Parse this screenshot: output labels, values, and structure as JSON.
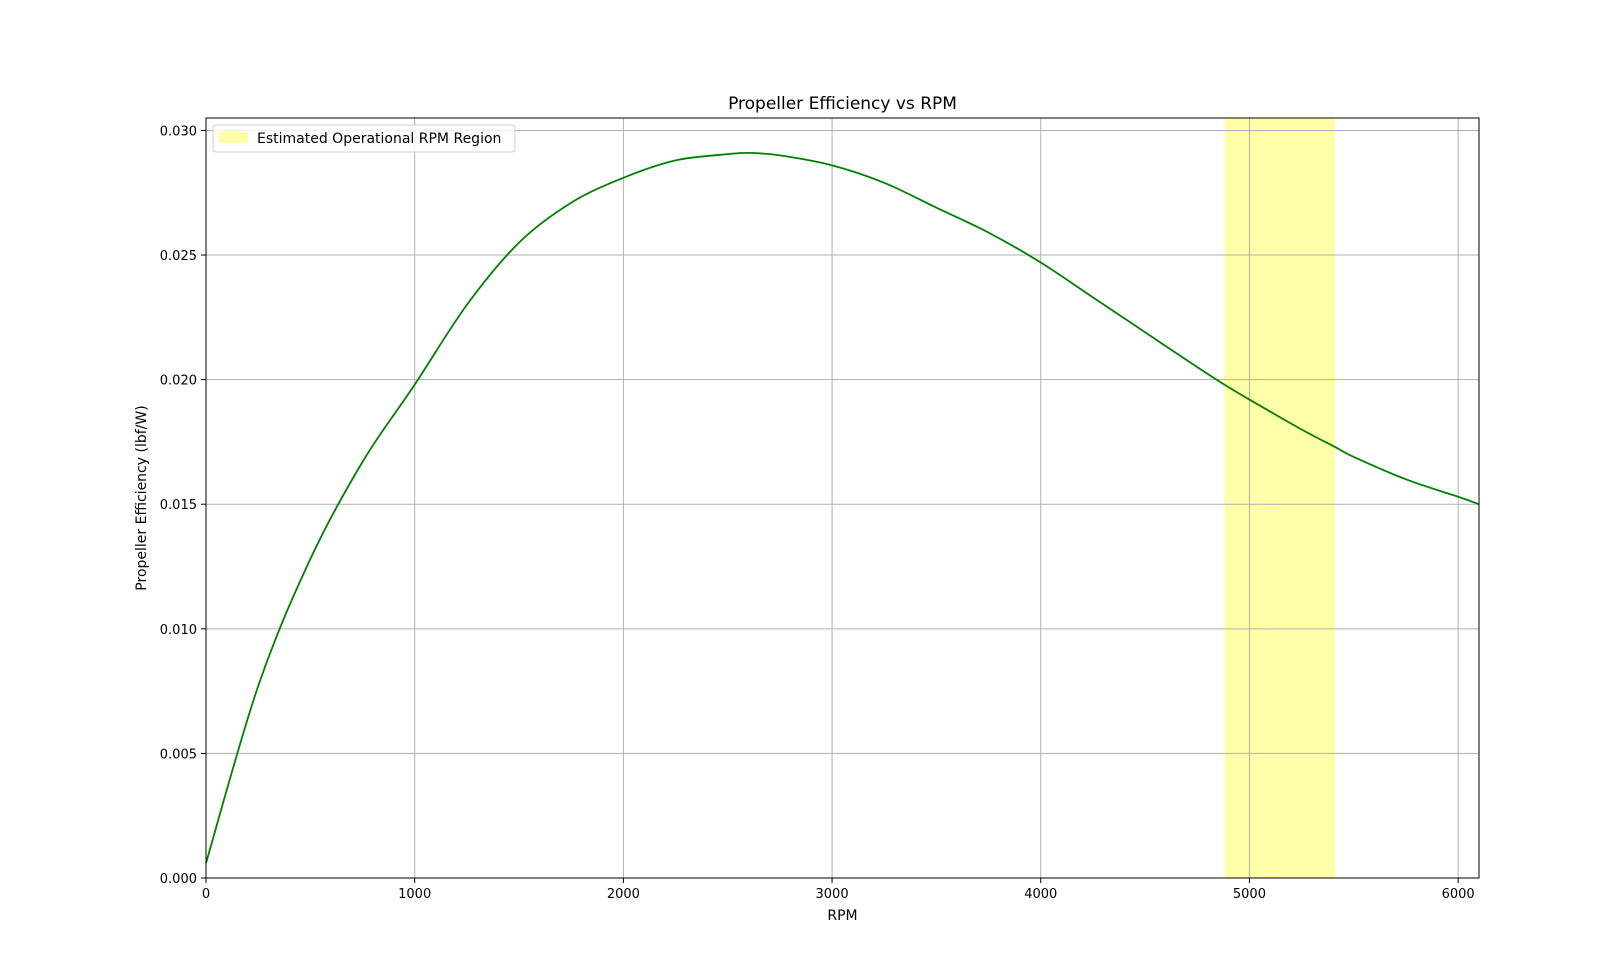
{
  "chart_data": {
    "type": "line",
    "title": "Propeller Efficiency vs RPM",
    "xlabel": "RPM",
    "ylabel": "Propeller Efficiency (lbf/W)",
    "xlim": [
      0,
      6100
    ],
    "ylim": [
      0,
      0.0305
    ],
    "grid": true,
    "x_ticks": [
      0,
      1000,
      2000,
      3000,
      4000,
      5000,
      6000
    ],
    "x_tick_labels": [
      "0",
      "1000",
      "2000",
      "3000",
      "4000",
      "5000",
      "6000"
    ],
    "y_ticks": [
      0,
      0.005,
      0.01,
      0.015,
      0.02,
      0.025,
      0.03
    ],
    "y_tick_labels": [
      "0.000",
      "0.005",
      "0.010",
      "0.015",
      "0.020",
      "0.025",
      "0.030"
    ],
    "series": [
      {
        "name": "Propeller Efficiency",
        "color": "#008000",
        "x": [
          0,
          250,
          500,
          750,
          1000,
          1250,
          1500,
          1750,
          2000,
          2250,
          2500,
          2600,
          2750,
          3000,
          3250,
          3500,
          3750,
          4000,
          4250,
          4500,
          4750,
          4880,
          5000,
          5250,
          5410,
          5500,
          5750,
          6000,
          6100
        ],
        "y": [
          0.0006,
          0.0077,
          0.0128,
          0.0167,
          0.0198,
          0.023,
          0.0255,
          0.0271,
          0.0281,
          0.0288,
          0.02905,
          0.0291,
          0.029,
          0.0286,
          0.0279,
          0.0269,
          0.0259,
          0.0247,
          0.0233,
          0.0219,
          0.0205,
          0.0198,
          0.0192,
          0.018,
          0.0173,
          0.0169,
          0.016,
          0.0153,
          0.015
        ]
      }
    ],
    "highlight_region": {
      "label": "Estimated Operational RPM Region",
      "x_start": 4880,
      "x_end": 5410,
      "color": "#ffffa8"
    },
    "legend": {
      "location": "upper-left",
      "entries": [
        "Estimated Operational RPM Region"
      ]
    },
    "colors": {
      "line": "#008000",
      "grid": "#b0b0b0",
      "region": "#ffffa8",
      "axes": "#000000"
    }
  }
}
